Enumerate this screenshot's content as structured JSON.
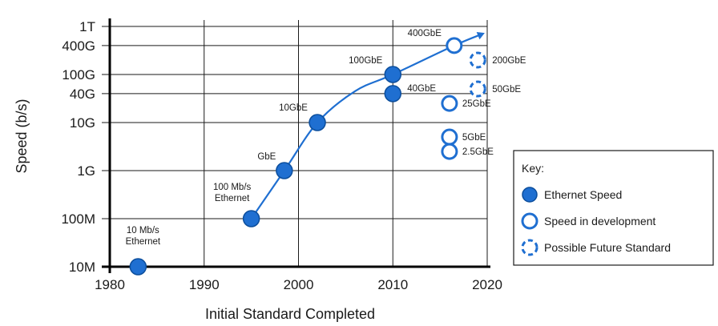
{
  "chart_data": {
    "type": "scatter",
    "title": "",
    "xlabel": "Initial Standard Completed",
    "ylabel": "Speed (b/s)",
    "xlim": [
      1980,
      2020
    ],
    "x_ticks": [
      1980,
      1990,
      2000,
      2010,
      2020
    ],
    "y_scale": "log",
    "y_ticks": [
      {
        "value": 10000000.0,
        "label": "10M"
      },
      {
        "value": 100000000.0,
        "label": "100M"
      },
      {
        "value": 1000000000.0,
        "label": "1G"
      },
      {
        "value": 10000000000.0,
        "label": "10G"
      },
      {
        "value": 40000000000.0,
        "label": "40G"
      },
      {
        "value": 100000000000.0,
        "label": "100G"
      },
      {
        "value": 400000000000.0,
        "label": "400G"
      },
      {
        "value": 1000000000000.0,
        "label": "1T"
      }
    ],
    "grid": true,
    "series": [
      {
        "name": "Ethernet Speed",
        "style": "filled",
        "points": [
          {
            "x": 1983,
            "y": 10000000.0,
            "label": [
              "10 Mb/s",
              "Ethernet"
            ]
          },
          {
            "x": 1995,
            "y": 100000000.0,
            "label": [
              "100 Mb/s",
              "Ethernet"
            ]
          },
          {
            "x": 1998.5,
            "y": 1000000000.0,
            "label": [
              "GbE"
            ]
          },
          {
            "x": 2002,
            "y": 10000000000.0,
            "label": [
              "10GbE"
            ]
          },
          {
            "x": 2010,
            "y": 100000000000.0,
            "label": [
              "100GbE"
            ]
          },
          {
            "x": 2010,
            "y": 40000000000.0,
            "label": [
              "40GbE"
            ]
          }
        ]
      },
      {
        "name": "Speed in development",
        "style": "open",
        "points": [
          {
            "x": 2016.5,
            "y": 400000000000.0,
            "label": [
              "400GbE"
            ]
          },
          {
            "x": 2016,
            "y": 25000000000.0,
            "label": [
              "25GbE"
            ]
          },
          {
            "x": 2016,
            "y": 5000000000.0,
            "label": [
              "5GbE"
            ]
          },
          {
            "x": 2016,
            "y": 2500000000.0,
            "label": [
              "2.5GbE"
            ]
          }
        ]
      },
      {
        "name": "Possible Future Standard",
        "style": "dashed",
        "points": [
          {
            "x": 2019,
            "y": 200000000000.0,
            "label": [
              "200GbE"
            ]
          },
          {
            "x": 2019,
            "y": 50000000000.0,
            "label": [
              "50GbE"
            ]
          }
        ]
      }
    ],
    "trend_line": [
      [
        1995,
        100000000.0
      ],
      [
        1998.5,
        1000000000.0
      ],
      [
        2002,
        10000000000.0
      ],
      [
        2006,
        45000000000.0
      ],
      [
        2010,
        100000000000.0
      ],
      [
        2016.5,
        400000000000.0
      ],
      [
        2019.5,
        700000000000.0
      ]
    ],
    "legend": {
      "title": "Key:",
      "placement": "right",
      "entries": [
        {
          "style": "filled",
          "label": "Ethernet Speed"
        },
        {
          "style": "open",
          "label": "Speed in development"
        },
        {
          "style": "dashed",
          "label": "Possible Future Standard"
        }
      ]
    },
    "colors": {
      "accent": "#1f6fd1",
      "stroke": "#0c4e9c",
      "grid": "#1a1a1a"
    }
  }
}
